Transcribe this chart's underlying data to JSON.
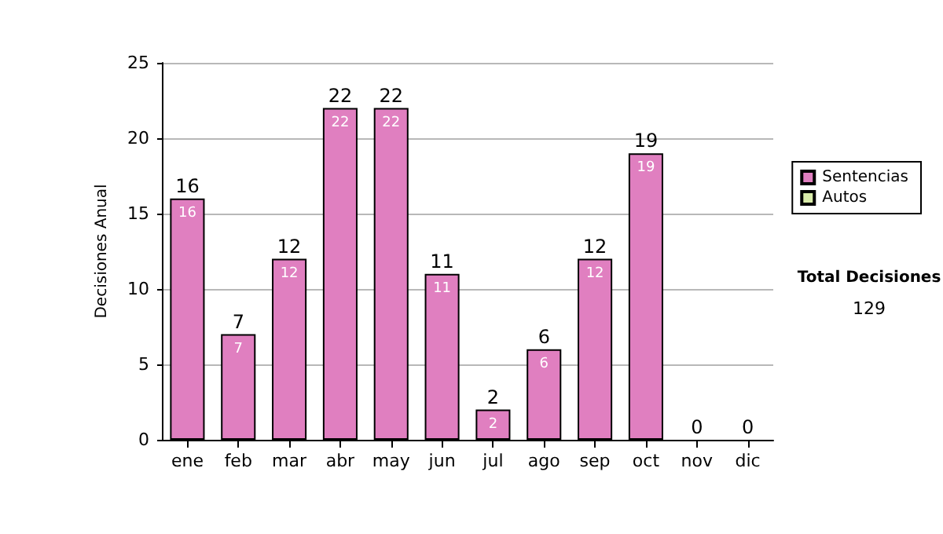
{
  "chart_data": {
    "type": "bar",
    "ylabel": "Decisiones Anual",
    "categories": [
      "ene",
      "feb",
      "mar",
      "abr",
      "may",
      "jun",
      "jul",
      "ago",
      "sep",
      "oct",
      "nov",
      "dic"
    ],
    "stacked": true,
    "series": [
      {
        "name": "Sentencias",
        "color": "#e07fc0",
        "values": [
          16,
          7,
          12,
          22,
          22,
          11,
          2,
          6,
          12,
          19,
          0,
          0
        ],
        "value_labels": [
          "16",
          "7",
          "12",
          "22",
          "22",
          "11",
          "2",
          "6",
          "12",
          "19",
          null,
          null
        ]
      },
      {
        "name": "Autos",
        "color": "#d9ecaa",
        "values": [
          0,
          0,
          0,
          0,
          0,
          0,
          0,
          0,
          0,
          0,
          0,
          0
        ]
      }
    ],
    "totals": [
      "16",
      "7",
      "12",
      "22",
      "22",
      "11",
      "2",
      "6",
      "12",
      "19",
      "0",
      "0"
    ],
    "ylim": [
      0,
      25
    ],
    "yticks": [
      0,
      5,
      10,
      15,
      20,
      25
    ],
    "grid": "y",
    "legend": "right",
    "annotations": [
      "Total Decisiones",
      "129"
    ]
  }
}
